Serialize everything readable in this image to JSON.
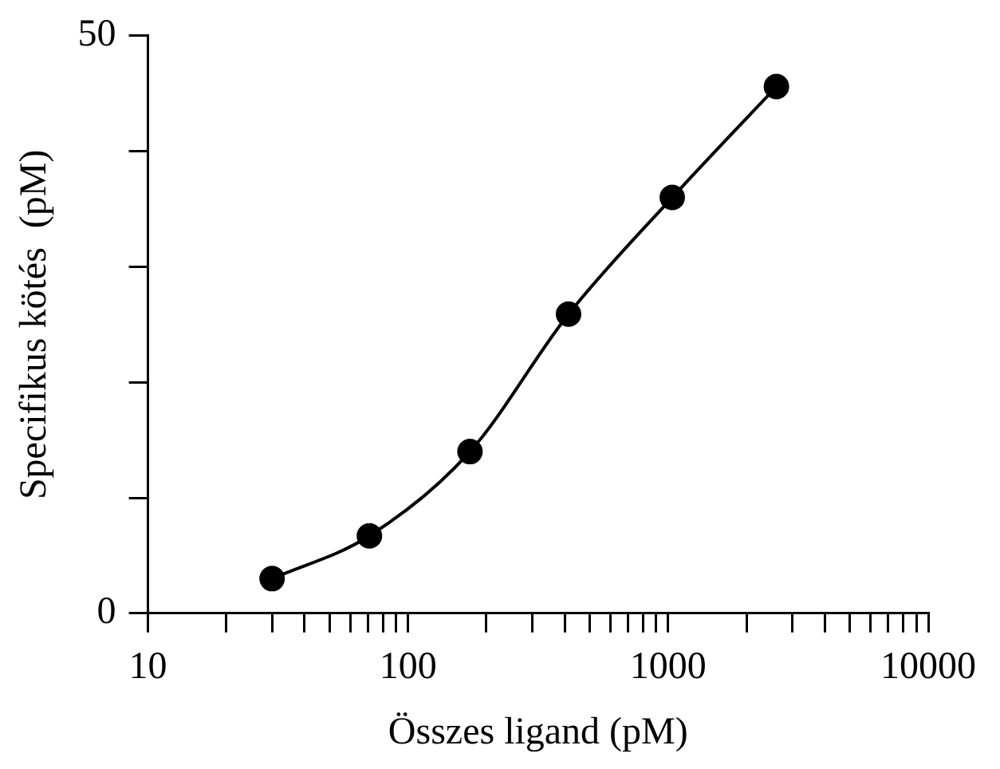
{
  "chart_data": {
    "type": "line",
    "xlabel": "Összes ligand (pM)",
    "ylabel": "Specifikus kötés  (pM)",
    "x": [
      30,
      71,
      173,
      414,
      1037,
      2608
    ],
    "series": [
      {
        "color": "#000000",
        "values": [
          3.0,
          6.7,
          14.0,
          25.9,
          36.0,
          45.6
        ]
      }
    ],
    "log": "x",
    "xlim": [
      10,
      10000
    ],
    "ylim": [
      0,
      50
    ],
    "xticks": [
      10,
      {
        "value": 20,
        "label": null
      },
      {
        "value": 30,
        "label": null
      },
      {
        "value": 40,
        "label": null
      },
      {
        "value": 50,
        "label": null
      },
      {
        "value": 60,
        "label": null
      },
      {
        "value": 70,
        "label": null
      },
      {
        "value": 80,
        "label": null
      },
      {
        "value": 90,
        "label": null
      },
      100,
      {
        "value": 200,
        "label": null
      },
      {
        "value": 300,
        "label": null
      },
      {
        "value": 400,
        "label": null
      },
      {
        "value": 500,
        "label": null
      },
      {
        "value": 600,
        "label": null
      },
      {
        "value": 700,
        "label": null
      },
      {
        "value": 800,
        "label": null
      },
      {
        "value": 900,
        "label": null
      },
      1000,
      {
        "value": 2000,
        "label": null
      },
      {
        "value": 3000,
        "label": null
      },
      {
        "value": 4000,
        "label": null
      },
      {
        "value": 5000,
        "label": null
      },
      {
        "value": 6000,
        "label": null
      },
      {
        "value": 7000,
        "label": null
      },
      {
        "value": 8000,
        "label": null
      },
      {
        "value": 9000,
        "label": null
      },
      10000
    ],
    "yticks": [
      0,
      {
        "value": 10,
        "label": null
      },
      {
        "value": 20,
        "label": null
      },
      {
        "value": 30,
        "label": null
      },
      {
        "value": 40,
        "label": null
      },
      50
    ],
    "marker": "circle",
    "line_style": "solid",
    "grid": false,
    "legend": false
  }
}
